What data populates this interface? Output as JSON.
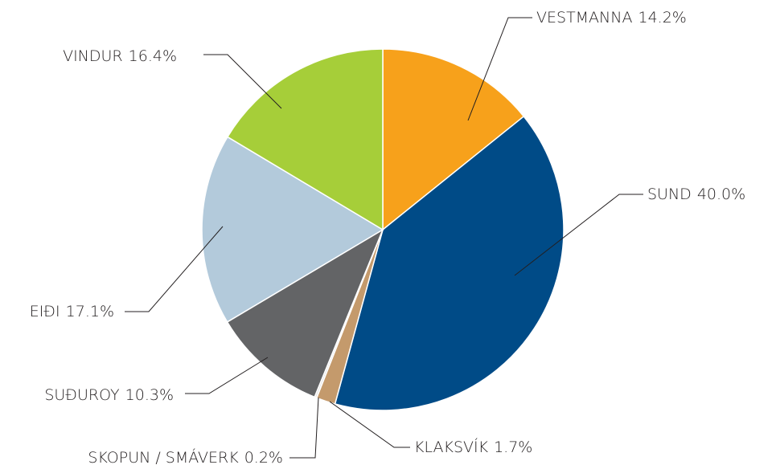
{
  "chart_data": {
    "type": "pie",
    "categories": [
      "VESTMANNA",
      "SUND",
      "KLAKSVÍK",
      "SKOPUN / SMÁVERK",
      "SUÐUROY",
      "EIÐI",
      "VINDUR"
    ],
    "values": [
      14.2,
      40.0,
      1.7,
      0.2,
      10.3,
      17.1,
      16.4
    ],
    "value_labels": [
      "14.2%",
      "40.0%",
      "1.7%",
      "0.2%",
      "10.3%",
      "17.1%",
      "16.4%"
    ],
    "colors": [
      "#f7a11b",
      "#004b87",
      "#c49a6c",
      "#e6e6e6",
      "#636466",
      "#b3cadb",
      "#a6ce39"
    ]
  }
}
